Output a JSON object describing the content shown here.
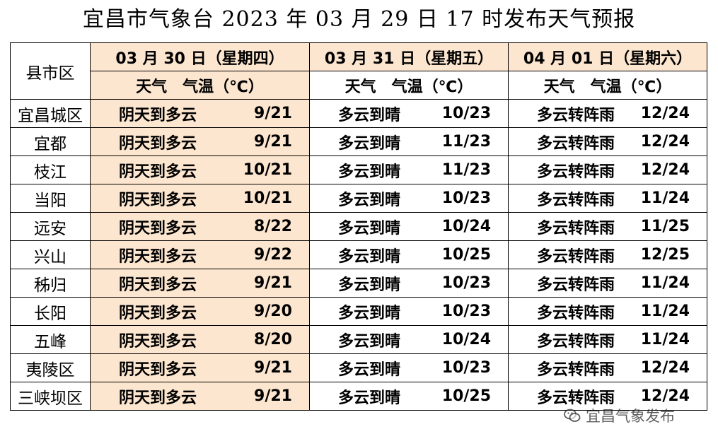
{
  "title": "宜昌市气象台 2023 年 03 月 29 日 17 时发布天气预报",
  "header": {
    "county_label": "县市区",
    "days": [
      {
        "date": "03 月 30 日（星期四）",
        "weather_label": "天气",
        "temp_label": "气温（℃）"
      },
      {
        "date": "03 月 31 日（星期五）",
        "weather_label": "天气",
        "temp_label": "气温（℃）"
      },
      {
        "date": "04 月 01 日（星期六）",
        "weather_label": "天气",
        "temp_label": "气温（℃）"
      }
    ]
  },
  "rows": [
    {
      "county": "宜昌城区",
      "d": [
        [
          "阴天到多云",
          "9/21"
        ],
        [
          "多云到晴",
          "10/23"
        ],
        [
          "多云转阵雨",
          "12/24"
        ]
      ]
    },
    {
      "county": "宜都",
      "d": [
        [
          "阴天到多云",
          "9/21"
        ],
        [
          "多云到晴",
          "11/23"
        ],
        [
          "多云转阵雨",
          "12/24"
        ]
      ]
    },
    {
      "county": "枝江",
      "d": [
        [
          "阴天到多云",
          "10/21"
        ],
        [
          "多云到晴",
          "11/23"
        ],
        [
          "多云转阵雨",
          "12/24"
        ]
      ]
    },
    {
      "county": "当阳",
      "d": [
        [
          "阴天到多云",
          "10/21"
        ],
        [
          "多云到晴",
          "10/23"
        ],
        [
          "多云转阵雨",
          "11/24"
        ]
      ]
    },
    {
      "county": "远安",
      "d": [
        [
          "阴天到多云",
          "8/22"
        ],
        [
          "多云到晴",
          "10/24"
        ],
        [
          "多云转阵雨",
          "11/25"
        ]
      ]
    },
    {
      "county": "兴山",
      "d": [
        [
          "阴天到多云",
          "9/22"
        ],
        [
          "多云到晴",
          "10/25"
        ],
        [
          "多云转阵雨",
          "12/25"
        ]
      ]
    },
    {
      "county": "秭归",
      "d": [
        [
          "阴天到多云",
          "9/21"
        ],
        [
          "多云到晴",
          "10/23"
        ],
        [
          "多云转阵雨",
          "11/24"
        ]
      ]
    },
    {
      "county": "长阳",
      "d": [
        [
          "阴天到多云",
          "9/20"
        ],
        [
          "多云到晴",
          "10/23"
        ],
        [
          "多云转阵雨",
          "11/24"
        ]
      ]
    },
    {
      "county": "五峰",
      "d": [
        [
          "阴天到多云",
          "8/20"
        ],
        [
          "多云到晴",
          "10/24"
        ],
        [
          "多云转阵雨",
          "11/24"
        ]
      ]
    },
    {
      "county": "夷陵区",
      "d": [
        [
          "阴天到多云",
          "9/21"
        ],
        [
          "多云到晴",
          "10/23"
        ],
        [
          "多云转阵雨",
          "12/24"
        ]
      ]
    },
    {
      "county": "三峡坝区",
      "d": [
        [
          "阴天到多云",
          "9/21"
        ],
        [
          "多云到晴",
          "10/25"
        ],
        [
          "多云转阵雨",
          "12/24"
        ]
      ]
    }
  ],
  "watermark": {
    "text": "宜昌气象发布",
    "icon": "wechat-icon"
  },
  "colors": {
    "peach": "#fce6cf",
    "white": "#ffffff",
    "border": "#000000"
  }
}
